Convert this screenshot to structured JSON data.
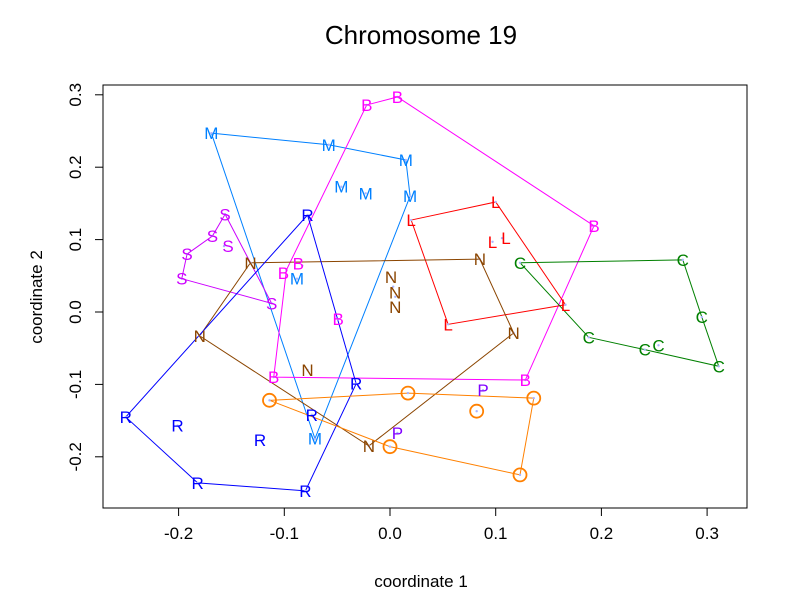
{
  "chart_data": {
    "type": "scatter",
    "title": "Chromosome 19",
    "xlabel": "coordinate 1",
    "ylabel": "coordinate 2",
    "xlim": [
      -0.27,
      0.34
    ],
    "ylim": [
      -0.27,
      0.315
    ],
    "xticks": [
      -0.2,
      -0.1,
      0.0,
      0.1,
      0.2,
      0.3
    ],
    "xtick_labels": [
      "-0.2",
      "-0.1",
      "0.0",
      "0.1",
      "0.2",
      "0.3"
    ],
    "yticks": [
      -0.2,
      -0.1,
      0.0,
      0.1,
      0.2,
      0.3
    ],
    "ytick_labels": [
      "-0.2",
      "-0.1",
      "0.0",
      "0.1",
      "0.2",
      "0.3"
    ],
    "grid": false,
    "legend": "none",
    "series": [
      {
        "name": "M",
        "label": "M",
        "color": "#0080FF",
        "points": [
          [
            -0.169,
            0.247
          ],
          [
            -0.058,
            0.231
          ],
          [
            0.015,
            0.21
          ],
          [
            0.019,
            0.16
          ],
          [
            -0.046,
            0.173
          ],
          [
            -0.023,
            0.164
          ],
          [
            -0.088,
            0.046
          ],
          [
            -0.071,
            -0.175
          ]
        ],
        "hull": [
          0,
          1,
          2,
          3,
          7
        ]
      },
      {
        "name": "B",
        "label": "B",
        "color": "#FF00FF",
        "points": [
          [
            -0.022,
            0.286
          ],
          [
            0.007,
            0.297
          ],
          [
            0.193,
            0.119
          ],
          [
            0.128,
            -0.094
          ],
          [
            -0.11,
            -0.09
          ],
          [
            -0.098,
            0.058
          ],
          [
            -0.083,
            0.064
          ],
          [
            -0.049,
            -0.01
          ]
        ],
        "hull": [
          0,
          1,
          2,
          3,
          4,
          5
        ]
      },
      {
        "name": "S",
        "label": "S",
        "color": "#CC00FF",
        "points": [
          [
            -0.156,
            0.135
          ],
          [
            -0.168,
            0.105
          ],
          [
            -0.157,
            0.091
          ],
          [
            -0.192,
            0.08
          ],
          [
            -0.197,
            0.046
          ],
          [
            -0.112,
            0.012
          ]
        ],
        "hull": [
          0,
          5,
          4,
          3,
          1
        ]
      },
      {
        "name": "L",
        "label": "L",
        "color": "#FF0000",
        "points": [
          [
            0.02,
            0.127
          ],
          [
            0.1,
            0.152
          ],
          [
            0.097,
            0.097
          ],
          [
            0.106,
            0.102
          ],
          [
            0.166,
            0.01
          ],
          [
            0.055,
            -0.017
          ]
        ],
        "hull": [
          0,
          1,
          4,
          5
        ]
      },
      {
        "name": "N",
        "label": "N",
        "color": "#8B4500",
        "points": [
          [
            -0.132,
            0.068
          ],
          [
            0.085,
            0.073
          ],
          [
            0.117,
            -0.029
          ],
          [
            -0.02,
            -0.185
          ],
          [
            -0.18,
            -0.033
          ],
          [
            0.001,
            0.048
          ],
          [
            0.003,
            0.035
          ],
          [
            0.005,
            0.021
          ],
          [
            -0.078,
            -0.08
          ]
        ],
        "hull": [
          0,
          1,
          2,
          3,
          4
        ]
      },
      {
        "name": "C",
        "label": "C",
        "color": "#008000",
        "points": [
          [
            0.123,
            0.068
          ],
          [
            0.277,
            0.072
          ],
          [
            0.295,
            -0.007
          ],
          [
            0.311,
            -0.075
          ],
          [
            0.254,
            -0.046
          ],
          [
            0.241,
            -0.052
          ],
          [
            0.188,
            -0.035
          ]
        ],
        "hull": [
          0,
          1,
          2,
          3,
          5,
          6
        ]
      },
      {
        "name": "R",
        "label": "R",
        "color": "#0000FF",
        "points": [
          [
            -0.078,
            0.134
          ],
          [
            -0.032,
            -0.099
          ],
          [
            -0.08,
            -0.247
          ],
          [
            -0.182,
            -0.236
          ],
          [
            -0.25,
            -0.145
          ],
          [
            -0.201,
            -0.157
          ],
          [
            -0.123,
            -0.177
          ],
          [
            -0.074,
            -0.142
          ]
        ],
        "hull": [
          0,
          1,
          2,
          3,
          4
        ]
      },
      {
        "name": "O",
        "label": "O",
        "color": "#FF8000",
        "points": [
          [
            -0.114,
            -0.122
          ],
          [
            0.017,
            -0.112
          ],
          [
            0.136,
            -0.119
          ],
          [
            0.082,
            -0.137
          ],
          [
            0.0,
            -0.186
          ],
          [
            0.123,
            -0.225
          ]
        ],
        "hull": [
          0,
          1,
          2,
          5,
          4
        ]
      },
      {
        "name": "P",
        "label": "P",
        "color": "#8000FF",
        "points": [
          [
            0.088,
            -0.108
          ],
          [
            0.007,
            -0.167
          ]
        ],
        "hull": []
      }
    ]
  }
}
